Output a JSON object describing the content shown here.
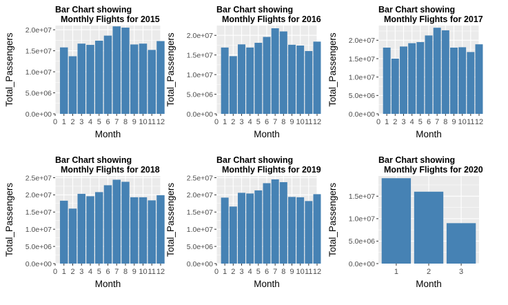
{
  "chart_data": [
    {
      "type": "bar",
      "title_line1": "Bar Chart showing",
      "title_line2": "Monthly Flights for 2015",
      "xlabel": "Month",
      "ylabel": "Total_Passengers",
      "bar_color": "#4682B4",
      "panel_bg": "#EBEBEB",
      "grid": true,
      "xlim": [
        0,
        12
      ],
      "x_ticks": [
        "0",
        "1",
        "2",
        "3",
        "4",
        "5",
        "6",
        "7",
        "8",
        "9",
        "10",
        "11",
        "12"
      ],
      "ylim": [
        0,
        21000000
      ],
      "y_ticks": [
        0,
        5000000,
        10000000,
        15000000,
        20000000
      ],
      "y_tick_labels": [
        "0.0e+00",
        "5.0e+06",
        "1.0e+07",
        "1.5e+07",
        "2.0e+07"
      ],
      "categories": [
        1,
        2,
        3,
        4,
        5,
        6,
        7,
        8,
        9,
        10,
        11,
        12
      ],
      "values": [
        15800000,
        13700000,
        16700000,
        16400000,
        17400000,
        18600000,
        20800000,
        20500000,
        16500000,
        16700000,
        15200000,
        17300000
      ]
    },
    {
      "type": "bar",
      "title_line1": "Bar Chart showing",
      "title_line2": "Monthly Flights for 2016",
      "xlabel": "Month",
      "ylabel": "Total_Passengers",
      "bar_color": "#4682B4",
      "panel_bg": "#EBEBEB",
      "grid": true,
      "xlim": [
        0,
        12
      ],
      "x_ticks": [
        "0",
        "1",
        "2",
        "3",
        "4",
        "5",
        "6",
        "7",
        "8",
        "9",
        "10",
        "11",
        "12"
      ],
      "ylim": [
        0,
        22500000
      ],
      "y_ticks": [
        0,
        5000000,
        10000000,
        15000000,
        20000000
      ],
      "y_tick_labels": [
        "0.0e+00",
        "5.0e+06",
        "1.0e+07",
        "1.5e+07",
        "2.0e+07"
      ],
      "categories": [
        1,
        2,
        3,
        4,
        5,
        6,
        7,
        8,
        9,
        10,
        11,
        12
      ],
      "values": [
        16900000,
        14700000,
        17700000,
        16900000,
        18100000,
        19600000,
        21800000,
        21000000,
        17600000,
        17400000,
        16000000,
        18400000
      ]
    },
    {
      "type": "bar",
      "title_line1": "Bar Chart showing",
      "title_line2": "Monthly Flights for 2017",
      "xlabel": "Month",
      "ylabel": "Total_Passengers",
      "bar_color": "#4682B4",
      "panel_bg": "#EBEBEB",
      "grid": true,
      "xlim": [
        0,
        12
      ],
      "x_ticks": [
        "0",
        "1",
        "2",
        "3",
        "4",
        "5",
        "6",
        "7",
        "8",
        "9",
        "10",
        "11",
        "12"
      ],
      "ylim": [
        0,
        24000000
      ],
      "y_ticks": [
        0,
        5000000,
        10000000,
        15000000,
        20000000
      ],
      "y_tick_labels": [
        "0.0e+00",
        "5.0e+06",
        "1.0e+07",
        "1.5e+07",
        "2.0e+07"
      ],
      "categories": [
        1,
        2,
        3,
        4,
        5,
        6,
        7,
        8,
        9,
        10,
        11,
        12
      ],
      "values": [
        18000000,
        15000000,
        18300000,
        19200000,
        19500000,
        21300000,
        23400000,
        22700000,
        18000000,
        18100000,
        16800000,
        18900000
      ]
    },
    {
      "type": "bar",
      "title_line1": "Bar Chart showing",
      "title_line2": "Monthly Flights for 2018",
      "xlabel": "Month",
      "ylabel": "Total_Passengers",
      "bar_color": "#4682B4",
      "panel_bg": "#EBEBEB",
      "grid": true,
      "xlim": [
        0,
        12
      ],
      "x_ticks": [
        "0",
        "1",
        "2",
        "3",
        "4",
        "5",
        "6",
        "7",
        "8",
        "9",
        "10",
        "11",
        "12"
      ],
      "ylim": [
        0,
        25500000
      ],
      "y_ticks": [
        0,
        5000000,
        10000000,
        15000000,
        20000000,
        25000000
      ],
      "y_tick_labels": [
        "0.0e+00",
        "5.0e+06",
        "1.0e+07",
        "1.5e+07",
        "2.0e+07",
        "2.5e+07"
      ],
      "categories": [
        1,
        2,
        3,
        4,
        5,
        6,
        7,
        8,
        9,
        10,
        11,
        12
      ],
      "values": [
        18300000,
        16000000,
        20300000,
        19600000,
        20800000,
        22800000,
        24400000,
        23800000,
        19300000,
        19300000,
        18400000,
        19900000
      ]
    },
    {
      "type": "bar",
      "title_line1": "Bar Chart showing",
      "title_line2": "Monthly Flights for 2019",
      "xlabel": "Month",
      "ylabel": "Total_Passengers",
      "bar_color": "#4682B4",
      "panel_bg": "#EBEBEB",
      "grid": true,
      "xlim": [
        0,
        12
      ],
      "x_ticks": [
        "0",
        "1",
        "2",
        "3",
        "4",
        "5",
        "6",
        "7",
        "8",
        "9",
        "10",
        "11",
        "12"
      ],
      "ylim": [
        0,
        25500000
      ],
      "y_ticks": [
        0,
        5000000,
        10000000,
        15000000,
        20000000,
        25000000
      ],
      "y_tick_labels": [
        "0.0e+00",
        "5.0e+06",
        "1.0e+07",
        "1.5e+07",
        "2.0e+07",
        "2.5e+07"
      ],
      "categories": [
        1,
        2,
        3,
        4,
        5,
        6,
        7,
        8,
        9,
        10,
        11,
        12
      ],
      "values": [
        19200000,
        16600000,
        20600000,
        20400000,
        21300000,
        23400000,
        24500000,
        23700000,
        19400000,
        19300000,
        18200000,
        20200000
      ]
    },
    {
      "type": "bar",
      "title_line1": "Bar Chart showing",
      "title_line2": "Monthly Flights for 2020",
      "xlabel": "Month",
      "ylabel": "Total_Passengers",
      "bar_color": "#4682B4",
      "panel_bg": "#EBEBEB",
      "grid": true,
      "xlim": [
        0.45,
        3.55
      ],
      "x_ticks": [
        "1",
        "2",
        "3"
      ],
      "ylim": [
        0,
        19500000
      ],
      "y_ticks": [
        0,
        5000000,
        10000000,
        15000000
      ],
      "y_tick_labels": [
        "0.0e+00",
        "5.0e+06",
        "1.0e+07",
        "1.5e+07"
      ],
      "categories": [
        1,
        2,
        3
      ],
      "values": [
        19000000,
        16000000,
        9000000
      ]
    }
  ]
}
